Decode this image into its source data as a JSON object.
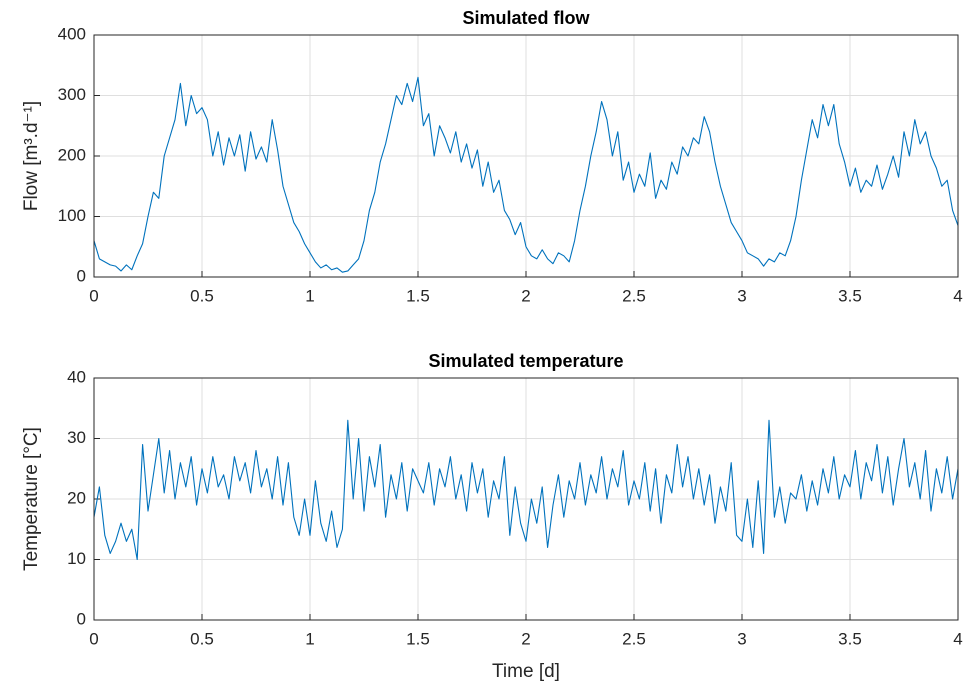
{
  "chart_data": [
    {
      "type": "line",
      "title": "Simulated flow",
      "ylabel": "Flow [m³.d⁻¹]",
      "color": "#0072bd",
      "grid": true,
      "xlim": [
        0,
        4
      ],
      "xticks": [
        0,
        0.5,
        1,
        1.5,
        2,
        2.5,
        3,
        3.5,
        4
      ],
      "ylim": [
        0,
        400
      ],
      "yticks": [
        0,
        100,
        200,
        300,
        400
      ],
      "x": [
        0,
        0.025,
        0.05,
        0.075,
        0.1,
        0.125,
        0.15,
        0.175,
        0.2,
        0.225,
        0.25,
        0.275,
        0.3,
        0.325,
        0.35,
        0.375,
        0.4,
        0.425,
        0.45,
        0.475,
        0.5,
        0.525,
        0.55,
        0.575,
        0.6,
        0.625,
        0.65,
        0.675,
        0.7,
        0.725,
        0.75,
        0.775,
        0.8,
        0.825,
        0.85,
        0.875,
        0.9,
        0.925,
        0.95,
        0.975,
        1,
        1.025,
        1.05,
        1.075,
        1.1,
        1.125,
        1.15,
        1.175,
        1.2,
        1.225,
        1.25,
        1.275,
        1.3,
        1.325,
        1.35,
        1.375,
        1.4,
        1.425,
        1.45,
        1.475,
        1.5,
        1.525,
        1.55,
        1.575,
        1.6,
        1.625,
        1.65,
        1.675,
        1.7,
        1.725,
        1.75,
        1.775,
        1.8,
        1.825,
        1.85,
        1.875,
        1.9,
        1.925,
        1.95,
        1.975,
        2,
        2.025,
        2.05,
        2.075,
        2.1,
        2.125,
        2.15,
        2.175,
        2.2,
        2.225,
        2.25,
        2.275,
        2.3,
        2.325,
        2.35,
        2.375,
        2.4,
        2.425,
        2.45,
        2.475,
        2.5,
        2.525,
        2.55,
        2.575,
        2.6,
        2.625,
        2.65,
        2.675,
        2.7,
        2.725,
        2.75,
        2.775,
        2.8,
        2.825,
        2.85,
        2.875,
        2.9,
        2.925,
        2.95,
        2.975,
        3,
        3.025,
        3.05,
        3.075,
        3.1,
        3.125,
        3.15,
        3.175,
        3.2,
        3.225,
        3.25,
        3.275,
        3.3,
        3.325,
        3.35,
        3.375,
        3.4,
        3.425,
        3.45,
        3.475,
        3.5,
        3.525,
        3.55,
        3.575,
        3.6,
        3.625,
        3.65,
        3.675,
        3.7,
        3.725,
        3.75,
        3.775,
        3.8,
        3.825,
        3.85,
        3.875,
        3.9,
        3.925,
        3.95,
        3.975,
        4
      ],
      "values": [
        60,
        30,
        25,
        20,
        18,
        10,
        20,
        12,
        35,
        55,
        100,
        140,
        130,
        200,
        230,
        260,
        320,
        250,
        300,
        270,
        280,
        260,
        200,
        240,
        185,
        230,
        200,
        235,
        175,
        240,
        195,
        215,
        190,
        260,
        210,
        150,
        120,
        90,
        75,
        55,
        40,
        25,
        15,
        20,
        12,
        15,
        8,
        10,
        20,
        30,
        60,
        110,
        140,
        190,
        220,
        260,
        300,
        285,
        320,
        290,
        330,
        250,
        270,
        200,
        250,
        230,
        205,
        240,
        190,
        220,
        180,
        210,
        150,
        190,
        140,
        160,
        110,
        95,
        70,
        90,
        50,
        35,
        30,
        45,
        30,
        22,
        40,
        35,
        25,
        60,
        110,
        150,
        200,
        240,
        290,
        260,
        200,
        240,
        160,
        190,
        140,
        170,
        150,
        205,
        130,
        160,
        145,
        190,
        170,
        215,
        200,
        230,
        220,
        265,
        240,
        190,
        150,
        120,
        90,
        75,
        60,
        40,
        35,
        30,
        18,
        30,
        25,
        40,
        35,
        60,
        100,
        160,
        210,
        260,
        230,
        285,
        250,
        285,
        220,
        190,
        150,
        180,
        140,
        160,
        150,
        185,
        145,
        170,
        200,
        165,
        240,
        200,
        260,
        220,
        240,
        200,
        180,
        150,
        160,
        110,
        85
      ]
    },
    {
      "type": "line",
      "title": "Simulated temperature",
      "xlabel": "Time [d]",
      "ylabel": "Temperature [°C]",
      "color": "#0072bd",
      "grid": true,
      "xlim": [
        0,
        4
      ],
      "xticks": [
        0,
        0.5,
        1,
        1.5,
        2,
        2.5,
        3,
        3.5,
        4
      ],
      "ylim": [
        0,
        40
      ],
      "yticks": [
        0,
        10,
        20,
        30,
        40
      ],
      "x": [
        0,
        0.025,
        0.05,
        0.075,
        0.1,
        0.125,
        0.15,
        0.175,
        0.2,
        0.225,
        0.25,
        0.275,
        0.3,
        0.325,
        0.35,
        0.375,
        0.4,
        0.425,
        0.45,
        0.475,
        0.5,
        0.525,
        0.55,
        0.575,
        0.6,
        0.625,
        0.65,
        0.675,
        0.7,
        0.725,
        0.75,
        0.775,
        0.8,
        0.825,
        0.85,
        0.875,
        0.9,
        0.925,
        0.95,
        0.975,
        1,
        1.025,
        1.05,
        1.075,
        1.1,
        1.125,
        1.15,
        1.175,
        1.2,
        1.225,
        1.25,
        1.275,
        1.3,
        1.325,
        1.35,
        1.375,
        1.4,
        1.425,
        1.45,
        1.475,
        1.5,
        1.525,
        1.55,
        1.575,
        1.6,
        1.625,
        1.65,
        1.675,
        1.7,
        1.725,
        1.75,
        1.775,
        1.8,
        1.825,
        1.85,
        1.875,
        1.9,
        1.925,
        1.95,
        1.975,
        2,
        2.025,
        2.05,
        2.075,
        2.1,
        2.125,
        2.15,
        2.175,
        2.2,
        2.225,
        2.25,
        2.275,
        2.3,
        2.325,
        2.35,
        2.375,
        2.4,
        2.425,
        2.45,
        2.475,
        2.5,
        2.525,
        2.55,
        2.575,
        2.6,
        2.625,
        2.65,
        2.675,
        2.7,
        2.725,
        2.75,
        2.775,
        2.8,
        2.825,
        2.85,
        2.875,
        2.9,
        2.925,
        2.95,
        2.975,
        3,
        3.025,
        3.05,
        3.075,
        3.1,
        3.125,
        3.15,
        3.175,
        3.2,
        3.225,
        3.25,
        3.275,
        3.3,
        3.325,
        3.35,
        3.375,
        3.4,
        3.425,
        3.45,
        3.475,
        3.5,
        3.525,
        3.55,
        3.575,
        3.6,
        3.625,
        3.65,
        3.675,
        3.7,
        3.725,
        3.75,
        3.775,
        3.8,
        3.825,
        3.85,
        3.875,
        3.9,
        3.925,
        3.95,
        3.975,
        4
      ],
      "values": [
        17,
        22,
        14,
        11,
        13,
        16,
        13,
        15,
        10,
        29,
        18,
        24,
        30,
        21,
        28,
        20,
        26,
        22,
        27,
        19,
        25,
        21,
        27,
        22,
        24,
        20,
        27,
        23,
        26,
        21,
        28,
        22,
        25,
        20,
        27,
        19,
        26,
        17,
        14,
        20,
        14,
        23,
        16,
        13,
        18,
        12,
        15,
        33,
        20,
        30,
        18,
        27,
        22,
        29,
        17,
        24,
        20,
        26,
        18,
        25,
        23,
        21,
        26,
        19,
        25,
        22,
        27,
        20,
        24,
        18,
        26,
        21,
        25,
        17,
        23,
        20,
        27,
        14,
        22,
        16,
        13,
        20,
        16,
        22,
        12,
        19,
        24,
        17,
        23,
        20,
        26,
        19,
        24,
        21,
        27,
        20,
        25,
        22,
        28,
        19,
        23,
        20,
        26,
        18,
        25,
        16,
        24,
        21,
        29,
        22,
        27,
        20,
        25,
        19,
        24,
        16,
        22,
        18,
        26,
        14,
        13,
        20,
        12,
        23,
        11,
        33,
        17,
        22,
        16,
        21,
        20,
        24,
        18,
        23,
        19,
        25,
        21,
        27,
        20,
        24,
        22,
        28,
        20,
        26,
        23,
        29,
        21,
        27,
        19,
        25,
        30,
        22,
        26,
        20,
        28,
        18,
        25,
        21,
        27,
        20,
        25
      ]
    }
  ]
}
